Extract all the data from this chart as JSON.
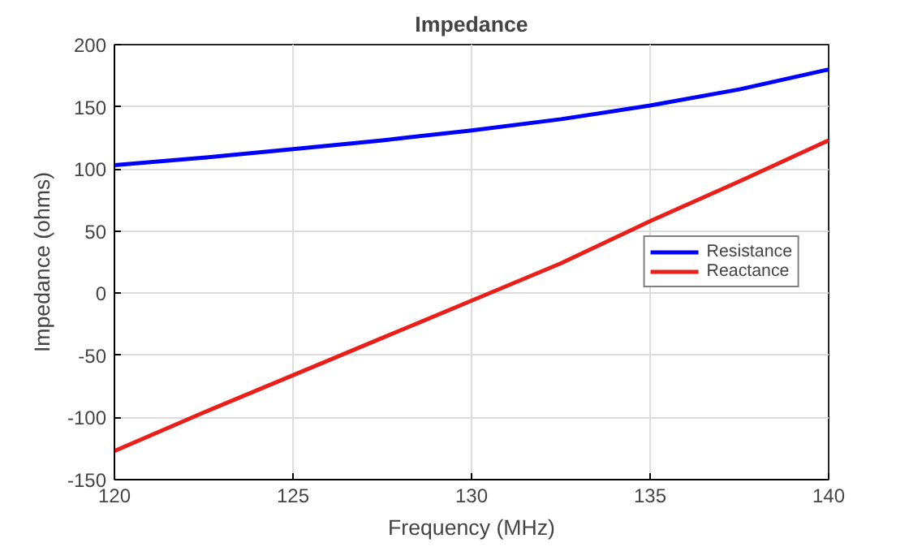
{
  "chart_data": {
    "type": "line",
    "title": "Impedance",
    "xlabel": "Frequency (MHz)",
    "ylabel": "Impedance (ohms)",
    "x": [
      120,
      122.5,
      125,
      127.5,
      130,
      132.5,
      135,
      137.5,
      140
    ],
    "series": [
      {
        "name": "Resistance",
        "color": "#0000ff",
        "values": [
          103,
          109,
          116,
          123,
          131,
          140,
          151,
          164,
          180
        ]
      },
      {
        "name": "Reactance",
        "color": "#e8201c",
        "values": [
          -127,
          -96,
          -66,
          -36,
          -6,
          24,
          58,
          90,
          123
        ]
      }
    ],
    "xlim": [
      120,
      140
    ],
    "xticks": [
      120,
      125,
      130,
      135,
      140
    ],
    "ylim": [
      -150,
      200
    ],
    "yticks": [
      -150,
      -100,
      -50,
      0,
      50,
      100,
      150,
      200
    ],
    "grid": true,
    "legend": "right",
    "line_style": "solid"
  }
}
